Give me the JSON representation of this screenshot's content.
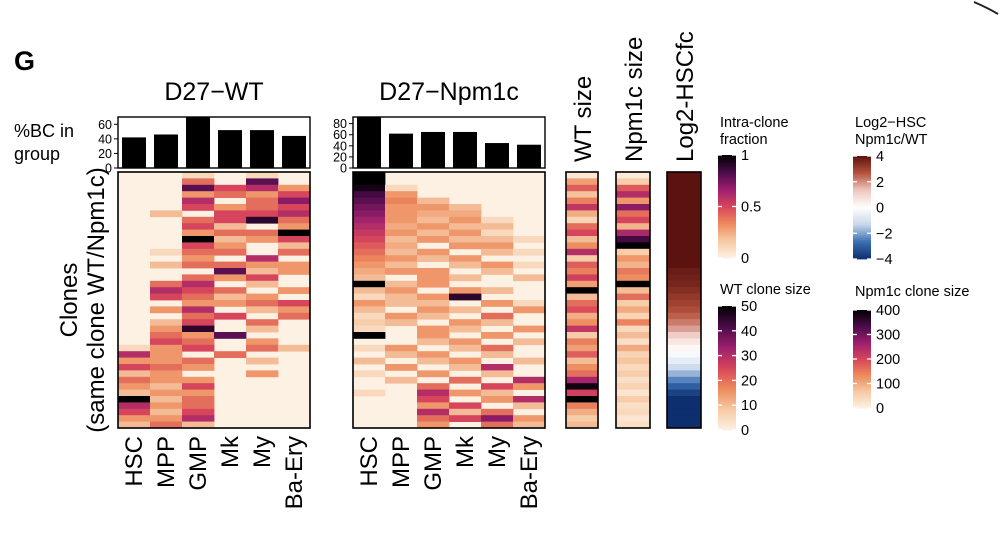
{
  "panel_label": "G",
  "bar_ylabel": [
    "%BC in",
    "group"
  ],
  "heatmap_ylabel": [
    "Clones",
    "(same clone WT/Npm1c)"
  ],
  "colors": {
    "heat_low": "#fdf1e3",
    "heat_stops": [
      "#fdf1e3",
      "#f6c9a4",
      "#ed8a5c",
      "#d6455c",
      "#9b1f6e",
      "#4a0c48",
      "#000000"
    ],
    "div_stops": [
      "#0d2f6e",
      "#3b6fb5",
      "#c9d7ea",
      "#ffffff",
      "#eec7bf",
      "#b6523e",
      "#5c130f"
    ],
    "bar_fill": "#000000"
  },
  "chart_data": [
    {
      "type": "bar",
      "title": "D27−WT",
      "categories": [
        "HSC",
        "MPP",
        "GMP",
        "Mk",
        "My",
        "Ba-Ery"
      ],
      "values": [
        42,
        46,
        70,
        52,
        52,
        44
      ],
      "ylim": [
        0,
        70
      ],
      "yticks": [
        0,
        20,
        40,
        60
      ]
    },
    {
      "type": "bar",
      "title": "D27−Npm1c",
      "categories": [
        "HSC",
        "MPP",
        "GMP",
        "Mk",
        "My",
        "Ba-Ery"
      ],
      "values": [
        92,
        62,
        65,
        65,
        45,
        42
      ],
      "ylim": [
        0,
        92
      ],
      "yticks": [
        0,
        20,
        40,
        60,
        80
      ]
    },
    {
      "type": "heatmap",
      "name": "D27-WT clone heatmap",
      "x": [
        "HSC",
        "MPP",
        "GMP",
        "Mk",
        "My",
        "Ba-Ery"
      ],
      "value_range": [
        0,
        1
      ],
      "values": [
        [
          0.0,
          0.0,
          0.1,
          0.0,
          0.1,
          0.0
        ],
        [
          0.0,
          0.0,
          0.4,
          0.0,
          0.8,
          0.0
        ],
        [
          0.0,
          0.0,
          0.8,
          0.5,
          0.6,
          0.3
        ],
        [
          0.0,
          0.0,
          0.3,
          0.4,
          0.3,
          0.5
        ],
        [
          0.0,
          0.0,
          0.6,
          0.0,
          0.4,
          0.7
        ],
        [
          0.0,
          0.0,
          0.5,
          0.3,
          0.4,
          0.5
        ],
        [
          0.0,
          0.2,
          0.0,
          0.5,
          0.5,
          0.6
        ],
        [
          0.0,
          0.0,
          0.4,
          0.5,
          0.9,
          0.4
        ],
        [
          0.0,
          0.0,
          0.5,
          0.2,
          0.0,
          0.3
        ],
        [
          0.0,
          0.0,
          0.3,
          0.4,
          0.4,
          1.0
        ],
        [
          0.0,
          0.0,
          1.0,
          0.2,
          0.3,
          0.5
        ],
        [
          0.0,
          0.0,
          0.5,
          0.3,
          0.0,
          0.2
        ],
        [
          0.0,
          0.1,
          0.4,
          0.4,
          0.0,
          0.4
        ],
        [
          0.0,
          0.0,
          0.3,
          0.0,
          0.6,
          0.0
        ],
        [
          0.0,
          0.2,
          0.4,
          0.4,
          0.3,
          0.3
        ],
        [
          0.0,
          0.0,
          0.0,
          0.8,
          0.2,
          0.3
        ],
        [
          0.0,
          0.0,
          0.4,
          0.3,
          0.5,
          0.0
        ],
        [
          0.0,
          0.4,
          0.6,
          0.0,
          0.2,
          0.0
        ],
        [
          0.0,
          0.6,
          0.5,
          0.4,
          0.0,
          0.3
        ],
        [
          0.0,
          0.5,
          0.4,
          0.2,
          0.3,
          0.0
        ],
        [
          0.0,
          0.0,
          0.3,
          0.3,
          0.4,
          0.5
        ],
        [
          0.0,
          0.3,
          0.6,
          0.0,
          0.2,
          0.3
        ],
        [
          0.0,
          0.0,
          0.4,
          0.5,
          0.0,
          0.4
        ],
        [
          0.0,
          0.2,
          0.5,
          0.0,
          0.4,
          0.0
        ],
        [
          0.0,
          0.3,
          0.9,
          0.0,
          0.2,
          0.0
        ],
        [
          0.0,
          0.4,
          0.3,
          0.8,
          0.0,
          0.0
        ],
        [
          0.0,
          0.5,
          0.4,
          0.0,
          0.3,
          0.0
        ],
        [
          0.1,
          0.3,
          0.5,
          0.0,
          0.4,
          0.2
        ],
        [
          0.6,
          0.3,
          0.0,
          0.4,
          0.0,
          0.0
        ],
        [
          0.3,
          0.3,
          0.4,
          0.0,
          0.2,
          0.0
        ],
        [
          0.5,
          0.4,
          0.3,
          0.0,
          0.0,
          0.0
        ],
        [
          0.2,
          0.3,
          0.0,
          0.0,
          0.3,
          0.0
        ],
        [
          0.4,
          0.3,
          0.3,
          0.0,
          0.0,
          0.0
        ],
        [
          0.3,
          0.2,
          0.5,
          0.0,
          0.0,
          0.0
        ],
        [
          0.2,
          0.3,
          0.3,
          0.0,
          0.0,
          0.0
        ],
        [
          1.0,
          0.2,
          0.4,
          0.0,
          0.0,
          0.0
        ],
        [
          0.6,
          0.3,
          0.4,
          0.0,
          0.0,
          0.0
        ],
        [
          0.5,
          0.2,
          0.5,
          0.0,
          0.0,
          0.0
        ],
        [
          0.3,
          0.3,
          0.6,
          0.0,
          0.0,
          0.0
        ],
        [
          0.2,
          0.4,
          0.2,
          0.0,
          0.0,
          0.0
        ]
      ]
    },
    {
      "type": "heatmap",
      "name": "D27-Npm1c clone heatmap",
      "x": [
        "HSC",
        "MPP",
        "GMP",
        "Mk",
        "My",
        "Ba-Ery"
      ],
      "value_range": [
        0,
        1
      ],
      "values": [
        [
          1.0,
          0.0,
          0.0,
          0.0,
          0.0,
          0.0
        ],
        [
          1.0,
          0.0,
          0.0,
          0.0,
          0.0,
          0.0
        ],
        [
          0.95,
          0.1,
          0.0,
          0.0,
          0.0,
          0.0
        ],
        [
          0.85,
          0.3,
          0.0,
          0.0,
          0.0,
          0.0
        ],
        [
          0.8,
          0.35,
          0.2,
          0.0,
          0.0,
          0.0
        ],
        [
          0.75,
          0.3,
          0.3,
          0.2,
          0.0,
          0.0
        ],
        [
          0.7,
          0.3,
          0.25,
          0.25,
          0.0,
          0.0
        ],
        [
          0.65,
          0.3,
          0.2,
          0.3,
          0.1,
          0.0
        ],
        [
          0.6,
          0.25,
          0.3,
          0.2,
          0.2,
          0.0
        ],
        [
          0.55,
          0.3,
          0.2,
          0.3,
          0.1,
          0.0
        ],
        [
          0.5,
          0.2,
          0.3,
          0.2,
          0.2,
          0.1
        ],
        [
          0.45,
          0.25,
          0.0,
          0.3,
          0.3,
          0.0
        ],
        [
          0.4,
          0.2,
          0.3,
          0.0,
          0.2,
          0.1
        ],
        [
          0.35,
          0.3,
          0.2,
          0.3,
          0.0,
          0.0
        ],
        [
          0.3,
          0.2,
          0.0,
          0.2,
          0.3,
          0.1
        ],
        [
          0.25,
          0.3,
          0.3,
          0.0,
          0.2,
          0.0
        ],
        [
          0.2,
          0.0,
          0.3,
          0.2,
          0.0,
          0.2
        ],
        [
          1.0,
          0.2,
          0.3,
          0.0,
          0.0,
          0.0
        ],
        [
          0.2,
          0.3,
          0.0,
          0.3,
          0.2,
          0.0
        ],
        [
          0.1,
          0.2,
          0.3,
          0.9,
          0.0,
          0.0
        ],
        [
          0.3,
          0.2,
          0.2,
          0.0,
          0.3,
          0.1
        ],
        [
          0.2,
          0.0,
          0.3,
          0.2,
          0.0,
          0.3
        ],
        [
          0.1,
          0.3,
          0.2,
          0.0,
          0.4,
          0.0
        ],
        [
          0.15,
          0.2,
          0.0,
          0.3,
          0.2,
          0.0
        ],
        [
          0.1,
          0.0,
          0.3,
          0.2,
          0.0,
          0.3
        ],
        [
          1.0,
          0.0,
          0.3,
          0.0,
          0.3,
          0.0
        ],
        [
          0.0,
          0.0,
          0.2,
          0.3,
          0.0,
          0.2
        ],
        [
          0.1,
          0.3,
          0.0,
          0.2,
          0.4,
          0.0
        ],
        [
          0.0,
          0.2,
          0.3,
          0.0,
          0.2,
          0.0
        ],
        [
          0.2,
          0.0,
          0.2,
          0.3,
          0.0,
          0.2
        ],
        [
          0.0,
          0.3,
          0.0,
          0.2,
          0.6,
          0.0
        ],
        [
          0.1,
          0.0,
          0.3,
          0.0,
          0.2,
          0.0
        ],
        [
          0.0,
          0.2,
          0.0,
          0.4,
          0.0,
          0.6
        ],
        [
          0.0,
          0.0,
          0.4,
          0.0,
          0.5,
          0.3
        ],
        [
          0.1,
          0.0,
          0.6,
          0.3,
          0.2,
          0.0
        ],
        [
          0.0,
          0.0,
          0.5,
          0.0,
          0.3,
          0.6
        ],
        [
          0.0,
          0.0,
          0.3,
          0.5,
          0.0,
          0.2
        ],
        [
          0.0,
          0.0,
          0.6,
          0.2,
          0.4,
          0.0
        ],
        [
          0.0,
          0.0,
          0.4,
          0.5,
          0.7,
          0.3
        ],
        [
          0.0,
          0.0,
          0.3,
          0.0,
          0.4,
          0.2
        ]
      ]
    },
    {
      "type": "heatmap",
      "title": "WT size",
      "value_range": [
        0,
        50
      ],
      "values": [
        2,
        14,
        22,
        9,
        18,
        28,
        12,
        6,
        20,
        25,
        10,
        16,
        30,
        8,
        22,
        18,
        26,
        14,
        50,
        10,
        20,
        24,
        12,
        16,
        28,
        8,
        18,
        14,
        22,
        10,
        16,
        20,
        32,
        48,
        26,
        50,
        18,
        12,
        8,
        10
      ]
    },
    {
      "type": "heatmap",
      "title": "Npm1c size",
      "value_range": [
        0,
        400
      ],
      "values": [
        10,
        60,
        180,
        240,
        120,
        280,
        160,
        200,
        90,
        250,
        340,
        400,
        60,
        120,
        90,
        150,
        130,
        400,
        80,
        160,
        60,
        100,
        50,
        140,
        40,
        80,
        30,
        100,
        50,
        70,
        40,
        60,
        30,
        50,
        20,
        60,
        30,
        40,
        20,
        30
      ]
    },
    {
      "type": "heatmap",
      "title": "Log2-HSCfc",
      "value_range": [
        -4,
        4
      ],
      "values": [
        4,
        4,
        4,
        4,
        4,
        4,
        4,
        4,
        4,
        4,
        4,
        4,
        4,
        4,
        4,
        3.8,
        3.7,
        3.6,
        3.4,
        3.2,
        3.0,
        2.8,
        2.5,
        2.2,
        1.8,
        1.2,
        0.6,
        0.2,
        -0.2,
        -0.6,
        -1.2,
        -1.8,
        -2.4,
        -3.0,
        -3.6,
        -4,
        -4,
        -4,
        -4,
        -4
      ]
    }
  ],
  "legends": [
    {
      "title": [
        "Intra-clone",
        "fraction"
      ],
      "ticks": [
        "1",
        "0.5",
        "0"
      ],
      "tick_values": [
        1,
        0.5,
        0
      ],
      "range": [
        0,
        1
      ],
      "scale": "heat"
    },
    {
      "title": [
        "WT clone size"
      ],
      "ticks": [
        "50",
        "40",
        "30",
        "20",
        "10",
        "0"
      ],
      "tick_values": [
        50,
        40,
        30,
        20,
        10,
        0
      ],
      "range": [
        0,
        50
      ],
      "scale": "heat"
    },
    {
      "title": [
        "Log2−HSC",
        "Npm1c/WT"
      ],
      "ticks": [
        "4",
        "2",
        "0",
        "−2",
        "−4"
      ],
      "tick_values": [
        4,
        2,
        0,
        -2,
        -4
      ],
      "range": [
        -4,
        4
      ],
      "scale": "div"
    },
    {
      "title": [
        "Npm1c clone size"
      ],
      "ticks": [
        "400",
        "300",
        "200",
        "100",
        "0"
      ],
      "tick_values": [
        400,
        300,
        200,
        100,
        0
      ],
      "range": [
        0,
        400
      ],
      "scale": "heat"
    }
  ]
}
